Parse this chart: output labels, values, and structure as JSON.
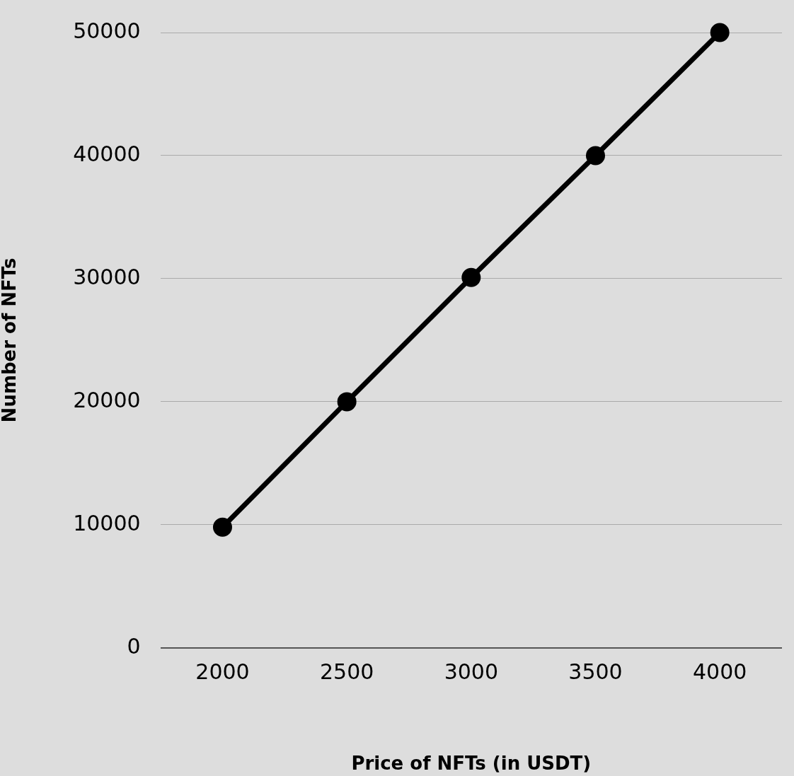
{
  "chart_data": {
    "type": "line",
    "xlabel": "Price of NFTs (in USDT)",
    "ylabel": "Number of NFTs",
    "categories": [
      "2000",
      "2500",
      "3000",
      "3500",
      "4000"
    ],
    "series": [
      {
        "color": "#000000",
        "values": [
          9800,
          20000,
          30100,
          40000,
          50000
        ]
      }
    ],
    "ylim": [
      0,
      50000
    ],
    "yticks": [
      0,
      10000,
      20000,
      30000,
      40000,
      50000
    ],
    "grid": "y",
    "legend": false,
    "marker": "circle",
    "line_style": "solid"
  }
}
